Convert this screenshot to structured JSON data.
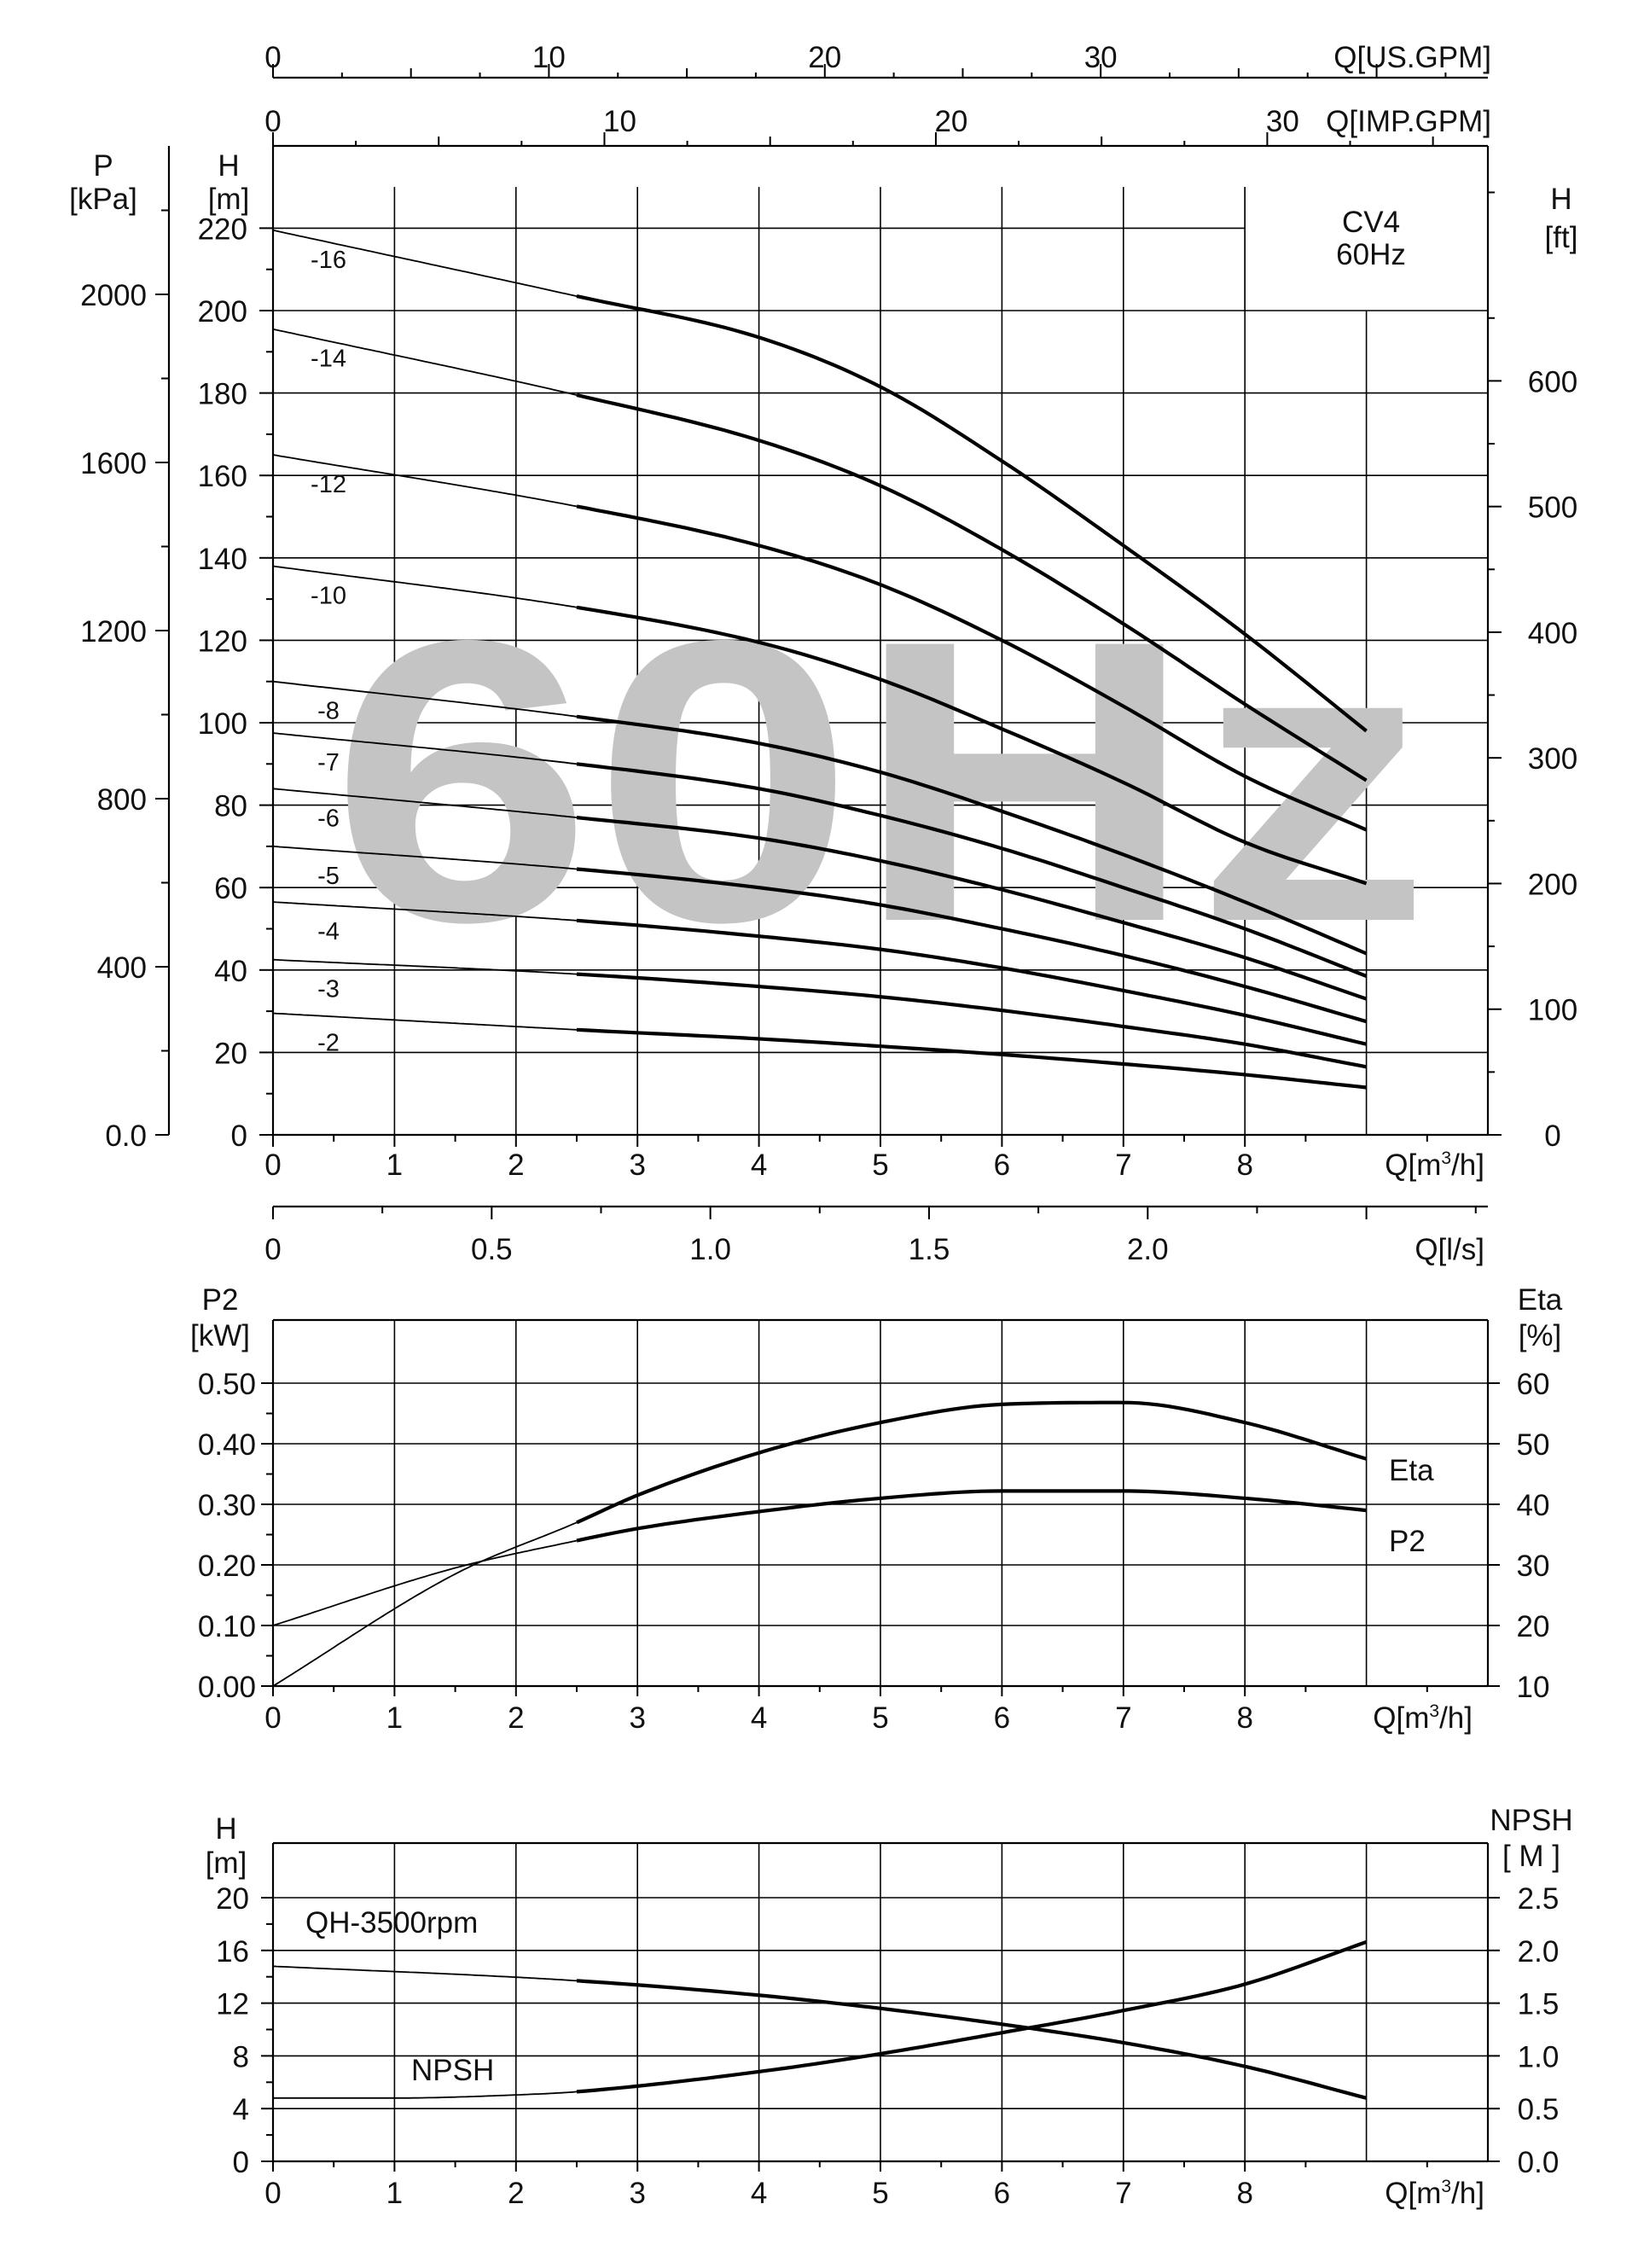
{
  "chart_data": [
    {
      "type": "line",
      "model_label": "CV4",
      "frequency_label": "60Hz",
      "watermark": "60Hz",
      "watermark_color": "#c4c4c4",
      "left_axis_pressure": {
        "label": "P",
        "unit": "[kPa]",
        "ticks": [
          "0.0",
          "400",
          "800",
          "1200",
          "1600",
          "2000"
        ],
        "range": [
          0,
          2200
        ]
      },
      "left_axis_head": {
        "label": "H",
        "unit": "[m]",
        "ticks": [
          "0",
          "20",
          "40",
          "60",
          "80",
          "100",
          "120",
          "140",
          "160",
          "180",
          "200",
          "220"
        ],
        "range": [
          0,
          240
        ]
      },
      "right_axis_head_ft": {
        "label": "H",
        "unit": "[ft]",
        "ticks": [
          "0",
          "100",
          "200",
          "300",
          "400",
          "500",
          "600"
        ],
        "range": [
          0,
          787
        ]
      },
      "top_axis_us_gpm": {
        "label": "Q[US.GPM]",
        "ticks": [
          "0",
          "10",
          "20",
          "30"
        ],
        "range": [
          0,
          44
        ]
      },
      "top_axis_imp_gpm": {
        "label": "Q[IMP.GPM]",
        "ticks": [
          "0",
          "10",
          "20",
          "30"
        ],
        "range": [
          0,
          36.7
        ]
      },
      "bottom_axis_m3h": {
        "label_prefix": "Q[m",
        "label_sup": "3",
        "label_suffix": "/h]",
        "ticks": [
          "0",
          "1",
          "2",
          "3",
          "4",
          "5",
          "6",
          "7",
          "8"
        ],
        "range": [
          0,
          10
        ]
      },
      "bottom_axis_ls": {
        "label": "Q[l/s]",
        "ticks": [
          "0",
          "0.5",
          "1.0",
          "1.5",
          "2.0"
        ],
        "range": [
          0,
          2.778
        ]
      },
      "series": [
        {
          "name": "-2",
          "x": [
            0,
            2.5,
            4,
            5,
            6,
            7,
            8,
            9
          ],
          "y": [
            29.5,
            25.5,
            23.3,
            21.5,
            19.5,
            17.2,
            14.6,
            11.5
          ]
        },
        {
          "name": "-3",
          "x": [
            0,
            2.5,
            4,
            5,
            6,
            7,
            8,
            9
          ],
          "y": [
            42.5,
            39.0,
            36.0,
            33.5,
            30.2,
            26.3,
            22.0,
            16.5
          ]
        },
        {
          "name": "-4",
          "x": [
            0,
            2.5,
            4,
            5,
            6,
            7,
            8,
            9
          ],
          "y": [
            56.5,
            52.0,
            48.2,
            45.0,
            40.5,
            35.0,
            29.0,
            22.0
          ]
        },
        {
          "name": "-5",
          "x": [
            0,
            2.5,
            4,
            5,
            6,
            7,
            8,
            9
          ],
          "y": [
            70.0,
            64.5,
            60.0,
            55.8,
            50.0,
            43.5,
            36.0,
            27.5
          ]
        },
        {
          "name": "-6",
          "x": [
            0,
            2.5,
            4,
            5,
            6,
            7,
            8,
            9
          ],
          "y": [
            84.0,
            77.0,
            72.0,
            66.5,
            59.5,
            51.5,
            43.0,
            33.0
          ]
        },
        {
          "name": "-7",
          "x": [
            0,
            2.5,
            4,
            5,
            6,
            7,
            8,
            9
          ],
          "y": [
            97.5,
            90.0,
            84.0,
            77.5,
            69.5,
            60.0,
            50.0,
            38.5
          ]
        },
        {
          "name": "-8",
          "x": [
            0,
            2.5,
            4,
            5,
            6,
            7,
            8,
            9
          ],
          "y": [
            110.0,
            101.5,
            95.0,
            88.0,
            78.5,
            68.0,
            56.5,
            44.0
          ]
        },
        {
          "name": "-10",
          "x": [
            0,
            2.5,
            4,
            5,
            6,
            7,
            8,
            9
          ],
          "y": [
            138.0,
            128.0,
            119.5,
            110.5,
            98.5,
            85.5,
            71.0,
            61.0
          ]
        },
        {
          "name": "-12",
          "x": [
            0,
            2.5,
            4,
            5,
            6,
            7,
            8,
            9
          ],
          "y": [
            165.0,
            152.5,
            143.0,
            133.5,
            120.0,
            104.0,
            87.0,
            74.0
          ]
        },
        {
          "name": "-14",
          "x": [
            0,
            2.5,
            4,
            5,
            6,
            7,
            8,
            9
          ],
          "y": [
            195.5,
            179.5,
            168.5,
            157.5,
            142.0,
            124.0,
            104.5,
            86.0
          ]
        },
        {
          "name": "-16",
          "x": [
            0,
            2.5,
            4,
            5,
            6,
            7,
            8,
            9
          ],
          "y": [
            219.5,
            203.5,
            193.5,
            181.5,
            163.5,
            143.0,
            121.5,
            98.0
          ]
        }
      ],
      "bold_from_x": 2.5,
      "grid": true,
      "legend": "inline-left"
    },
    {
      "type": "line",
      "left_axis": {
        "label": "P2",
        "unit": "[kW]",
        "ticks": [
          "0.00",
          "0.10",
          "0.20",
          "0.30",
          "0.40",
          "0.50"
        ],
        "range": [
          0,
          0.5
        ]
      },
      "right_axis": {
        "label": "Eta",
        "unit": "[%]",
        "ticks": [
          "10",
          "20",
          "30",
          "40",
          "50",
          "60"
        ],
        "range": [
          10,
          60
        ]
      },
      "x_axis": {
        "label_prefix": "Q[m",
        "label_sup": "3",
        "label_suffix": "/h]",
        "ticks": [
          "0",
          "1",
          "2",
          "3",
          "4",
          "5",
          "6",
          "7",
          "8"
        ],
        "range": [
          0,
          10
        ]
      },
      "series": [
        {
          "name": "Eta",
          "axis": "right",
          "x": [
            0,
            1.5,
            2.5,
            3,
            4,
            5,
            6,
            7,
            8,
            9
          ],
          "y": [
            10.0,
            28.5,
            37.0,
            41.5,
            48.5,
            53.5,
            56.5,
            56.8,
            53.5,
            47.5
          ]
        },
        {
          "name": "P2",
          "axis": "left",
          "x": [
            0,
            1.5,
            2.5,
            3,
            4,
            5,
            6,
            7,
            8,
            9
          ],
          "y": [
            0.1,
            0.195,
            0.24,
            0.26,
            0.288,
            0.31,
            0.322,
            0.322,
            0.31,
            0.29
          ]
        }
      ],
      "bold_from_x": 2.5,
      "grid": true,
      "legend": "right-inline"
    },
    {
      "type": "line",
      "left_axis": {
        "label": "H",
        "unit": "[m]",
        "ticks": [
          "0",
          "4",
          "8",
          "12",
          "16",
          "20"
        ],
        "range": [
          0,
          20
        ]
      },
      "right_axis": {
        "label": "NPSH",
        "unit": "[ M ]",
        "ticks": [
          "0.0",
          "0.5",
          "1.0",
          "1.5",
          "2.0",
          "2.5"
        ],
        "range": [
          0,
          2.5
        ]
      },
      "x_axis": {
        "label_prefix": "Q[m",
        "label_sup": "3",
        "label_suffix": "/h]",
        "ticks": [
          "0",
          "1",
          "2",
          "3",
          "4",
          "5",
          "6",
          "7",
          "8"
        ],
        "range": [
          0,
          10
        ]
      },
      "series": [
        {
          "name": "QH-3500rpm",
          "axis": "left",
          "x": [
            0,
            2.5,
            4,
            5,
            6,
            7,
            8,
            9
          ],
          "y": [
            14.8,
            13.7,
            12.6,
            11.6,
            10.4,
            9.0,
            7.2,
            4.8
          ]
        },
        {
          "name": "NPSH",
          "axis": "right",
          "x": [
            0,
            1,
            2,
            2.5,
            4,
            5,
            6,
            7,
            8,
            9
          ],
          "y": [
            0.6,
            0.6,
            0.63,
            0.66,
            0.85,
            1.02,
            1.22,
            1.43,
            1.68,
            2.08
          ]
        }
      ],
      "bold_from_x": 2.5,
      "grid": true,
      "legend": "inline"
    }
  ]
}
